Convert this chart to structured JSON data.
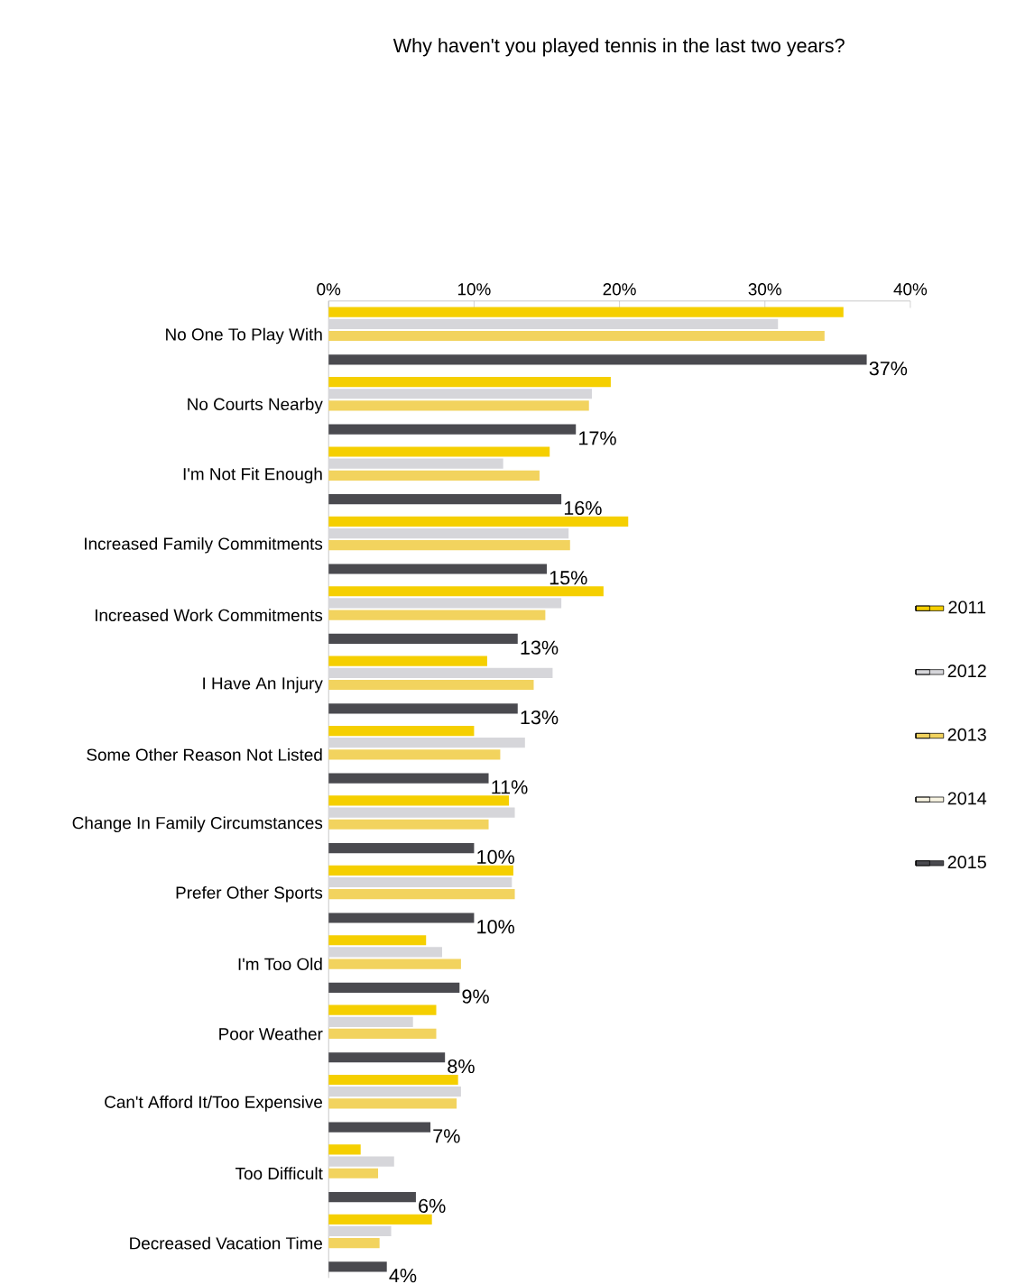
{
  "chart_data": {
    "type": "bar",
    "orientation": "horizontal",
    "title": "Why haven't you played tennis in the last two years?",
    "categories": [
      "No One To Play With",
      "No Courts Nearby",
      "I'm Not Fit Enough",
      "Increased Family Commitments",
      "Increased Work Commitments",
      "I Have An Injury",
      "Some Other Reason Not Listed",
      "Change In Family Circumstances",
      "Prefer Other Sports",
      "I'm Too Old",
      "Poor Weather",
      "Can't Afford It/Too Expensive",
      "Too Difficult",
      "Decreased Vacation Time"
    ],
    "series": [
      {
        "name": "2011",
        "color": "#f5cf00",
        "values": [
          35.4,
          19.4,
          15.2,
          20.6,
          18.9,
          10.9,
          10.0,
          12.4,
          12.7,
          6.7,
          7.4,
          8.9,
          2.2,
          7.1
        ]
      },
      {
        "name": "2012",
        "color": "#d6d6da",
        "values": [
          30.9,
          18.1,
          12.0,
          16.5,
          16.0,
          15.4,
          13.5,
          12.8,
          12.6,
          7.8,
          5.8,
          9.1,
          4.5,
          4.3
        ]
      },
      {
        "name": "2013",
        "color": "#f2d35e",
        "values": [
          34.1,
          17.9,
          14.5,
          16.6,
          14.9,
          14.1,
          11.8,
          11.0,
          12.8,
          9.1,
          7.4,
          8.8,
          3.4,
          3.5
        ]
      },
      {
        "name": "2014",
        "color": "#f8f4e2",
        "values": [
          null,
          null,
          null,
          null,
          null,
          null,
          null,
          null,
          null,
          null,
          null,
          null,
          null,
          null
        ]
      },
      {
        "name": "2015",
        "color": "#4a4a4f",
        "values": [
          37,
          17,
          16,
          15,
          13,
          13,
          11,
          10,
          10,
          9,
          8,
          7,
          6,
          4
        ],
        "value_labels": [
          "37%",
          "17%",
          "16%",
          "15%",
          "13%",
          "13%",
          "11%",
          "10%",
          "10%",
          "9%",
          "8%",
          "7%",
          "6%",
          "4%"
        ]
      }
    ],
    "xlim": [
      0,
      40
    ],
    "xticks": [
      {
        "value": 0,
        "label": "0%"
      },
      {
        "value": 10,
        "label": "10%"
      },
      {
        "value": 20,
        "label": "20%"
      },
      {
        "value": 30,
        "label": "30%"
      },
      {
        "value": 40,
        "label": "40%"
      }
    ],
    "legend": "right"
  }
}
